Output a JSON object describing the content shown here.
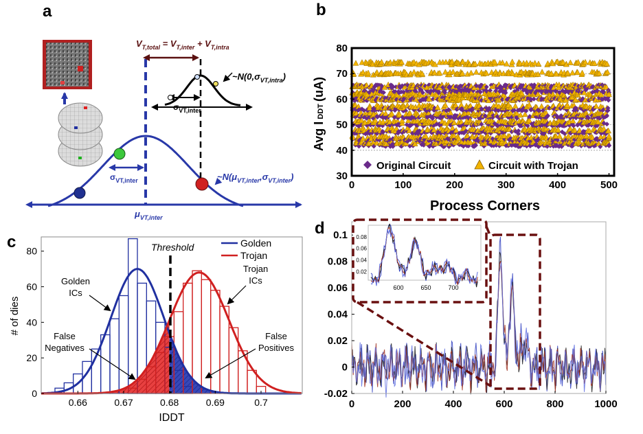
{
  "panels": {
    "a": "a",
    "b": "b",
    "c": "c",
    "d": "d"
  },
  "panel_a": {
    "equation": "V_T,total = V_T,inter + V_T,intra",
    "intra_dist": "~N(0,σ_VT,intra)",
    "inter_dist": "~N(μ_VT,inter,σ_VT,inter)",
    "sigma_inter": "σ_VT,inter",
    "mu_inter": "μ_VT,inter",
    "colors": {
      "curve": "#2838a8",
      "dot_green": "#3cc83c",
      "dot_red": "#d02020",
      "dot_blue": "#203090",
      "arrow_dark": "#5a1010"
    }
  },
  "chart_data": [
    {
      "panel": "b",
      "type": "scatter",
      "xlabel": "Process Corners",
      "ylabel": "Avg I DDT (uA)",
      "xlim": [
        0,
        510
      ],
      "ylim": [
        30,
        80
      ],
      "xticks": [
        0,
        100,
        200,
        300,
        400,
        500
      ],
      "yticks": [
        30,
        40,
        50,
        60,
        70,
        80
      ],
      "legend_position": "bottom",
      "series": [
        {
          "name": "Original Circuit",
          "color": "#6a2a8a",
          "marker": "diamond",
          "y_range": [
            41,
            66
          ],
          "count": 500
        },
        {
          "name": "Circuit with Trojan",
          "color": "#f2b400",
          "marker": "triangle",
          "y_range": [
            42,
            74
          ],
          "count": 500
        }
      ]
    },
    {
      "panel": "c",
      "type": "bar",
      "xlabel": "IDDT",
      "ylabel": "# of dies",
      "xlim": [
        0.652,
        0.709
      ],
      "ylim": [
        0,
        88
      ],
      "xticks": [
        0.66,
        0.67,
        0.68,
        0.69,
        0.7
      ],
      "yticks": [
        0,
        20,
        40,
        60,
        80
      ],
      "threshold": 0.68,
      "threshold_label": "Threshold",
      "legend_position": "top-right",
      "bin_width": 0.002,
      "series": [
        {
          "name": "Golden",
          "color": "#2030a0",
          "bins": [
            0.656,
            0.658,
            0.66,
            0.662,
            0.664,
            0.666,
            0.668,
            0.67,
            0.672,
            0.674,
            0.676,
            0.678,
            0.68,
            0.682,
            0.684
          ],
          "counts": [
            3,
            6,
            11,
            18,
            25,
            33,
            42,
            55,
            87,
            62,
            52,
            40,
            26,
            13,
            4
          ],
          "fit_mean": 0.673,
          "fit_peak": 70,
          "fit_sigma": 0.0058
        },
        {
          "name": "Trojan",
          "color": "#d02020",
          "bins": [
            0.672,
            0.674,
            0.676,
            0.678,
            0.68,
            0.682,
            0.684,
            0.686,
            0.688,
            0.69,
            0.692,
            0.694,
            0.696,
            0.698,
            0.7
          ],
          "counts": [
            3,
            8,
            15,
            23,
            32,
            46,
            62,
            69,
            64,
            58,
            49,
            37,
            24,
            13,
            4
          ],
          "fit_mean": 0.6865,
          "fit_peak": 68,
          "fit_sigma": 0.0065
        }
      ],
      "annotations": [
        "Golden ICs",
        "Trojan ICs",
        "False Negatives",
        "False Positives"
      ]
    },
    {
      "panel": "d",
      "type": "line",
      "xlim": [
        0,
        1000
      ],
      "ylim": [
        -0.02,
        0.11
      ],
      "xticks": [
        0,
        200,
        400,
        600,
        800,
        1000
      ],
      "yticks": [
        -0.02,
        0,
        0.02,
        0.04,
        0.06,
        0.08,
        0.1
      ],
      "ytick_labels": [
        "-0.02",
        "0",
        "0.02",
        "0.04",
        "0.06",
        "0.08",
        "0.1"
      ],
      "peak": {
        "x": 585,
        "y": 0.1
      },
      "zoom_window": [
        545,
        750
      ],
      "inset": {
        "xticks": [
          600,
          650,
          700
        ],
        "yticks": [
          0.02,
          0.04,
          0.06,
          0.08
        ]
      },
      "series_colors": [
        "#3040c0",
        "#202020",
        "#a03020",
        "#6070e0"
      ]
    }
  ],
  "annotations": {
    "b_legend_original": "Original Circuit",
    "b_legend_trojan": "Circuit with Trojan",
    "c_threshold": "Threshold",
    "c_golden_ics": [
      "Golden",
      "ICs"
    ],
    "c_trojan_ics": [
      "Trojan",
      "ICs"
    ],
    "c_false_negatives": [
      "False",
      "Negatives"
    ],
    "c_false_positives": [
      "False",
      "Positives"
    ],
    "c_legend_golden": "Golden",
    "c_legend_trojan": "Trojan"
  }
}
